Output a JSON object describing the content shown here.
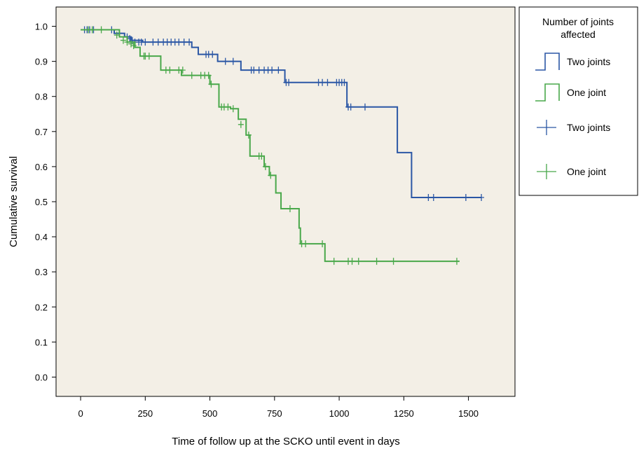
{
  "chart_data": {
    "type": "line",
    "subtype": "kaplan-meier",
    "title": "",
    "xlabel": "Time of follow up at the SCKO until event in days",
    "ylabel": "Cumulative survival",
    "xlim": [
      -95,
      1680
    ],
    "ylim": [
      -0.055,
      1.055
    ],
    "xticks": [
      0,
      250,
      500,
      750,
      1000,
      1250,
      1500
    ],
    "xtick_labels": [
      "0",
      "250",
      "500",
      "750",
      "1000",
      "1250",
      "1500"
    ],
    "yticks": [
      0.0,
      0.1,
      0.2,
      0.3,
      0.4,
      0.5,
      0.6,
      0.7,
      0.8,
      0.9,
      1.0
    ],
    "ytick_labels": [
      "0.0",
      "0.1",
      "0.2",
      "0.3",
      "0.4",
      "0.5",
      "0.6",
      "0.7",
      "0.8",
      "0.9",
      "1.0"
    ],
    "grid": false,
    "plot_background": "#f3efe6",
    "legend": {
      "placement": "right",
      "title": "Number of joints affected",
      "title_lines": [
        "Number of joints",
        "affected"
      ],
      "entries": [
        {
          "label": "Two joints",
          "symbol": "step",
          "color": "#2b57a5"
        },
        {
          "label": "One joint",
          "symbol": "step",
          "color": "#49a84a"
        },
        {
          "label": "Two joints",
          "symbol": "censor",
          "color": "#2b57a5"
        },
        {
          "label": "One joint",
          "symbol": "censor",
          "color": "#49a84a"
        }
      ]
    },
    "series": [
      {
        "name": "Two joints",
        "color": "#2b57a5",
        "steps": [
          [
            0,
            0.99
          ],
          [
            130,
            0.98
          ],
          [
            170,
            0.97
          ],
          [
            195,
            0.96
          ],
          [
            240,
            0.955
          ],
          [
            430,
            0.94
          ],
          [
            455,
            0.92
          ],
          [
            530,
            0.9
          ],
          [
            620,
            0.875
          ],
          [
            790,
            0.84
          ],
          [
            1030,
            0.77
          ],
          [
            1225,
            0.64
          ],
          [
            1280,
            0.512
          ],
          [
            1550,
            0.512
          ]
        ],
        "censored": [
          [
            15,
            0.99
          ],
          [
            25,
            0.99
          ],
          [
            35,
            0.99
          ],
          [
            50,
            0.99
          ],
          [
            120,
            0.99
          ],
          [
            150,
            0.98
          ],
          [
            180,
            0.97
          ],
          [
            190,
            0.965
          ],
          [
            200,
            0.96
          ],
          [
            210,
            0.955
          ],
          [
            225,
            0.955
          ],
          [
            235,
            0.955
          ],
          [
            250,
            0.955
          ],
          [
            280,
            0.955
          ],
          [
            300,
            0.955
          ],
          [
            320,
            0.955
          ],
          [
            335,
            0.955
          ],
          [
            350,
            0.955
          ],
          [
            365,
            0.955
          ],
          [
            380,
            0.955
          ],
          [
            400,
            0.955
          ],
          [
            420,
            0.955
          ],
          [
            485,
            0.92
          ],
          [
            495,
            0.92
          ],
          [
            510,
            0.92
          ],
          [
            560,
            0.9
          ],
          [
            590,
            0.9
          ],
          [
            660,
            0.875
          ],
          [
            670,
            0.875
          ],
          [
            690,
            0.875
          ],
          [
            710,
            0.875
          ],
          [
            725,
            0.875
          ],
          [
            740,
            0.875
          ],
          [
            765,
            0.875
          ],
          [
            795,
            0.84
          ],
          [
            805,
            0.84
          ],
          [
            920,
            0.84
          ],
          [
            935,
            0.84
          ],
          [
            955,
            0.84
          ],
          [
            990,
            0.84
          ],
          [
            1000,
            0.84
          ],
          [
            1010,
            0.84
          ],
          [
            1020,
            0.84
          ],
          [
            1035,
            0.77
          ],
          [
            1045,
            0.77
          ],
          [
            1100,
            0.77
          ],
          [
            1345,
            0.512
          ],
          [
            1365,
            0.512
          ],
          [
            1490,
            0.512
          ],
          [
            1550,
            0.512
          ]
        ]
      },
      {
        "name": "One joint",
        "color": "#49a84a",
        "steps": [
          [
            0,
            0.99
          ],
          [
            150,
            0.97
          ],
          [
            180,
            0.955
          ],
          [
            210,
            0.94
          ],
          [
            230,
            0.915
          ],
          [
            310,
            0.875
          ],
          [
            390,
            0.86
          ],
          [
            500,
            0.835
          ],
          [
            535,
            0.77
          ],
          [
            580,
            0.765
          ],
          [
            610,
            0.735
          ],
          [
            640,
            0.69
          ],
          [
            655,
            0.63
          ],
          [
            710,
            0.6
          ],
          [
            730,
            0.575
          ],
          [
            755,
            0.525
          ],
          [
            775,
            0.48
          ],
          [
            845,
            0.425
          ],
          [
            850,
            0.38
          ],
          [
            945,
            0.33
          ],
          [
            1465,
            0.33
          ]
        ],
        "censored": [
          [
            30,
            0.99
          ],
          [
            45,
            0.99
          ],
          [
            80,
            0.99
          ],
          [
            140,
            0.975
          ],
          [
            165,
            0.96
          ],
          [
            180,
            0.955
          ],
          [
            195,
            0.95
          ],
          [
            205,
            0.945
          ],
          [
            245,
            0.915
          ],
          [
            250,
            0.915
          ],
          [
            265,
            0.915
          ],
          [
            330,
            0.875
          ],
          [
            345,
            0.875
          ],
          [
            380,
            0.875
          ],
          [
            395,
            0.875
          ],
          [
            430,
            0.86
          ],
          [
            465,
            0.86
          ],
          [
            480,
            0.86
          ],
          [
            495,
            0.86
          ],
          [
            505,
            0.835
          ],
          [
            545,
            0.77
          ],
          [
            555,
            0.77
          ],
          [
            570,
            0.77
          ],
          [
            590,
            0.765
          ],
          [
            620,
            0.72
          ],
          [
            650,
            0.69
          ],
          [
            690,
            0.63
          ],
          [
            700,
            0.63
          ],
          [
            715,
            0.6
          ],
          [
            735,
            0.575
          ],
          [
            810,
            0.48
          ],
          [
            855,
            0.38
          ],
          [
            870,
            0.38
          ],
          [
            935,
            0.38
          ],
          [
            980,
            0.33
          ],
          [
            1035,
            0.33
          ],
          [
            1050,
            0.33
          ],
          [
            1075,
            0.33
          ],
          [
            1145,
            0.33
          ],
          [
            1210,
            0.33
          ],
          [
            1455,
            0.33
          ]
        ]
      }
    ]
  }
}
